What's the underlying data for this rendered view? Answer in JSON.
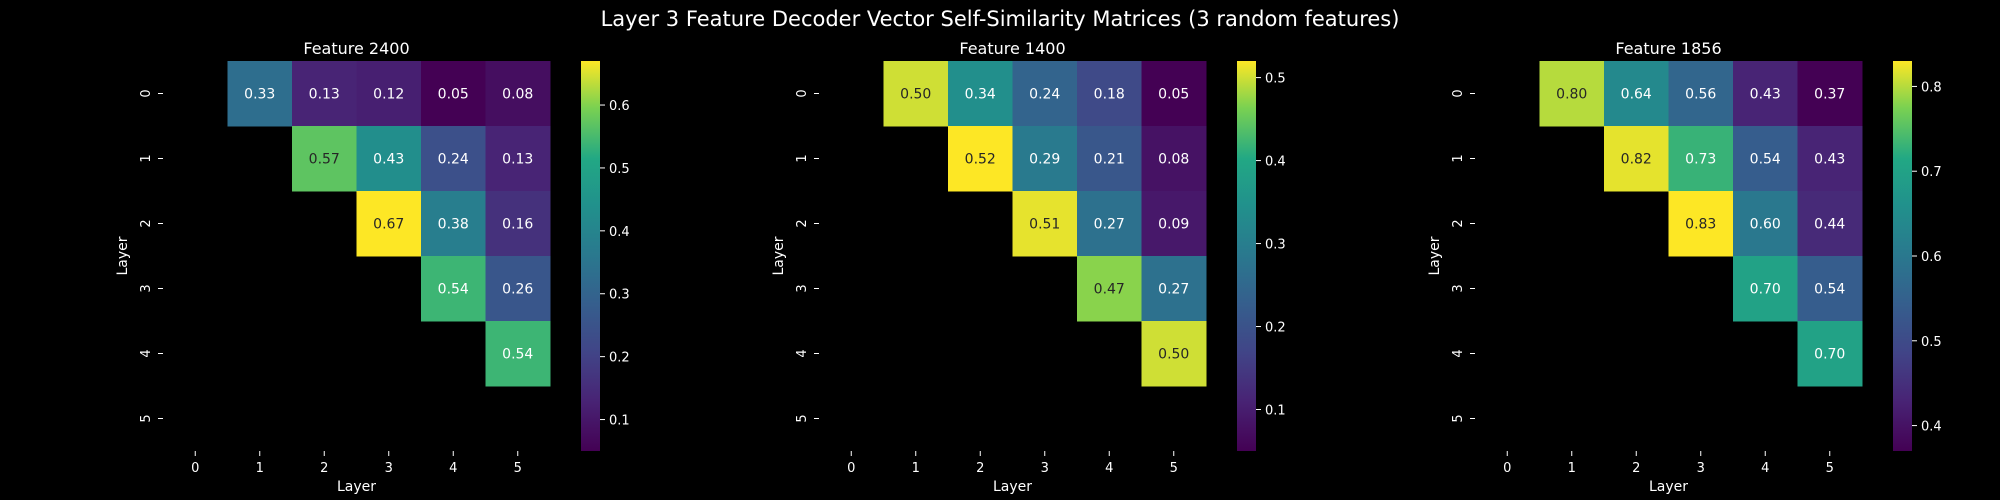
{
  "figure": {
    "suptitle": "Layer 3 Feature Decoder Vector Self-Similarity Matrices (3 random features)"
  },
  "chart_data": [
    {
      "type": "heatmap",
      "title": "Feature 2400",
      "xlabel": "Layer",
      "ylabel": "Layer",
      "x_ticks": [
        "0",
        "1",
        "2",
        "3",
        "4",
        "5"
      ],
      "y_ticks": [
        "0",
        "1",
        "2",
        "3",
        "4",
        "5"
      ],
      "colormap": "viridis",
      "vmin": 0.05,
      "vmax": 0.67,
      "colorbar_ticks": [
        0.1,
        0.2,
        0.3,
        0.4,
        0.5,
        0.6
      ],
      "colorbar_tick_labels": [
        "0.1",
        "0.2",
        "0.3",
        "0.4",
        "0.5",
        "0.6"
      ],
      "matrix": [
        [
          null,
          0.33,
          0.13,
          0.12,
          0.05,
          0.08
        ],
        [
          null,
          null,
          0.57,
          0.43,
          0.24,
          0.13
        ],
        [
          null,
          null,
          null,
          0.67,
          0.38,
          0.16
        ],
        [
          null,
          null,
          null,
          null,
          0.54,
          0.26
        ],
        [
          null,
          null,
          null,
          null,
          null,
          0.54
        ],
        [
          null,
          null,
          null,
          null,
          null,
          null
        ]
      ],
      "labels": [
        [
          "",
          "0.33",
          "0.13",
          "0.12",
          "0.05",
          "0.08"
        ],
        [
          "",
          "",
          "0.57",
          "0.43",
          "0.24",
          "0.13"
        ],
        [
          "",
          "",
          "",
          "0.67",
          "0.38",
          "0.16"
        ],
        [
          "",
          "",
          "",
          "",
          "0.54",
          "0.26"
        ],
        [
          "",
          "",
          "",
          "",
          "",
          "0.54"
        ],
        [
          "",
          "",
          "",
          "",
          "",
          ""
        ]
      ]
    },
    {
      "type": "heatmap",
      "title": "Feature 1400",
      "xlabel": "Layer",
      "ylabel": "Layer",
      "x_ticks": [
        "0",
        "1",
        "2",
        "3",
        "4",
        "5"
      ],
      "y_ticks": [
        "0",
        "1",
        "2",
        "3",
        "4",
        "5"
      ],
      "colormap": "viridis",
      "vmin": 0.05,
      "vmax": 0.52,
      "colorbar_ticks": [
        0.1,
        0.2,
        0.3,
        0.4,
        0.5
      ],
      "colorbar_tick_labels": [
        "0.1",
        "0.2",
        "0.3",
        "0.4",
        "0.5"
      ],
      "matrix": [
        [
          null,
          0.5,
          0.34,
          0.24,
          0.18,
          0.05
        ],
        [
          null,
          null,
          0.52,
          0.29,
          0.21,
          0.08
        ],
        [
          null,
          null,
          null,
          0.51,
          0.27,
          0.09
        ],
        [
          null,
          null,
          null,
          null,
          0.47,
          0.27
        ],
        [
          null,
          null,
          null,
          null,
          null,
          0.5
        ],
        [
          null,
          null,
          null,
          null,
          null,
          null
        ]
      ],
      "labels": [
        [
          "",
          "0.50",
          "0.34",
          "0.24",
          "0.18",
          "0.05"
        ],
        [
          "",
          "",
          "0.52",
          "0.29",
          "0.21",
          "0.08"
        ],
        [
          "",
          "",
          "",
          "0.51",
          "0.27",
          "0.09"
        ],
        [
          "",
          "",
          "",
          "",
          "0.47",
          "0.27"
        ],
        [
          "",
          "",
          "",
          "",
          "",
          "0.50"
        ],
        [
          "",
          "",
          "",
          "",
          "",
          ""
        ]
      ]
    },
    {
      "type": "heatmap",
      "title": "Feature 1856",
      "xlabel": "Layer",
      "ylabel": "Layer",
      "x_ticks": [
        "0",
        "1",
        "2",
        "3",
        "4",
        "5"
      ],
      "y_ticks": [
        "0",
        "1",
        "2",
        "3",
        "4",
        "5"
      ],
      "colormap": "viridis",
      "vmin": 0.37,
      "vmax": 0.83,
      "colorbar_ticks": [
        0.4,
        0.5,
        0.6,
        0.7,
        0.8
      ],
      "colorbar_tick_labels": [
        "0.4",
        "0.5",
        "0.6",
        "0.7",
        "0.8"
      ],
      "matrix": [
        [
          null,
          0.8,
          0.64,
          0.56,
          0.43,
          0.37
        ],
        [
          null,
          null,
          0.82,
          0.73,
          0.54,
          0.43
        ],
        [
          null,
          null,
          null,
          0.83,
          0.6,
          0.44
        ],
        [
          null,
          null,
          null,
          null,
          0.7,
          0.54
        ],
        [
          null,
          null,
          null,
          null,
          null,
          0.7
        ],
        [
          null,
          null,
          null,
          null,
          null,
          null
        ]
      ],
      "labels": [
        [
          "",
          "0.80",
          "0.64",
          "0.56",
          "0.43",
          "0.37"
        ],
        [
          "",
          "",
          "0.82",
          "0.73",
          "0.54",
          "0.43"
        ],
        [
          "",
          "",
          "",
          "0.83",
          "0.60",
          "0.44"
        ],
        [
          "",
          "",
          "",
          "",
          "0.70",
          "0.54"
        ],
        [
          "",
          "",
          "",
          "",
          "",
          "0.70"
        ],
        [
          "",
          "",
          "",
          "",
          "",
          ""
        ]
      ]
    }
  ]
}
